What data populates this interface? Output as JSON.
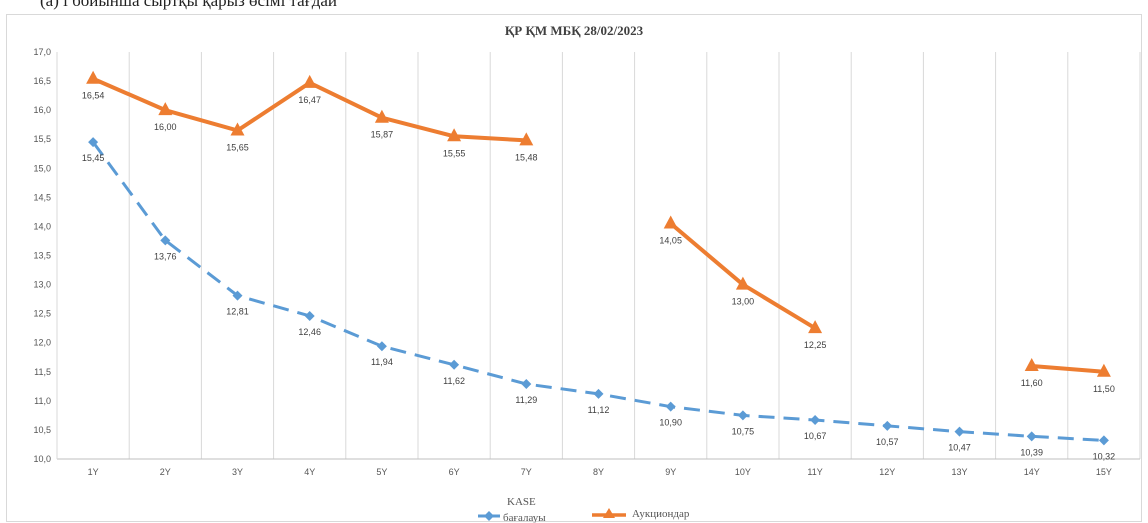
{
  "header_fragment": "(a)          і бойынша сыртқы қарыз өсімі            тағдай",
  "chart_data": {
    "type": "line",
    "title": "ҚР ҚМ МБҚ 28/02/2023",
    "xlabel": "",
    "ylabel": "",
    "categories": [
      "1Y",
      "2Y",
      "3Y",
      "4Y",
      "5Y",
      "6Y",
      "7Y",
      "8Y",
      "9Y",
      "10Y",
      "11Y",
      "12Y",
      "13Y",
      "14Y",
      "15Y"
    ],
    "ylim": [
      10.0,
      17.0
    ],
    "yticks": [
      "10,0",
      "10,5",
      "11,0",
      "11,5",
      "12,0",
      "12,5",
      "13,0",
      "13,5",
      "14,0",
      "14,5",
      "15,0",
      "15,5",
      "16,0",
      "16,5",
      "17,0"
    ],
    "grid": "vertical",
    "legend_position": "bottom",
    "series": [
      {
        "name": "KASE бағалауы",
        "legend_line1": "KASE",
        "legend_line2": "бағалауы",
        "color": "#5b9bd5",
        "style": "dashed",
        "marker": "diamond",
        "values": [
          15.45,
          13.76,
          12.81,
          12.46,
          11.94,
          11.62,
          11.29,
          11.12,
          10.9,
          10.75,
          10.67,
          10.57,
          10.47,
          10.39,
          10.32
        ],
        "labels": [
          "15,45",
          "13,76",
          "12,81",
          "12,46",
          "11,94",
          "11,62",
          "11,29",
          "11,12",
          "10,90",
          "10,75",
          "10,67",
          "10,57",
          "10,47",
          "10,39",
          "10,32"
        ]
      },
      {
        "name": "Аукциондар",
        "color": "#ed7d31",
        "style": "solid",
        "marker": "triangle",
        "values": [
          16.54,
          16.0,
          15.65,
          16.47,
          15.87,
          15.55,
          15.48,
          null,
          14.05,
          13.0,
          12.25,
          null,
          null,
          11.6,
          11.5
        ],
        "labels": [
          "16,54",
          "16,00",
          "15,65",
          "16,47",
          "15,87",
          "15,55",
          "15,48",
          "",
          "14,05",
          "13,00",
          "12,25",
          "",
          "",
          "11,60",
          "11,50"
        ]
      }
    ]
  }
}
